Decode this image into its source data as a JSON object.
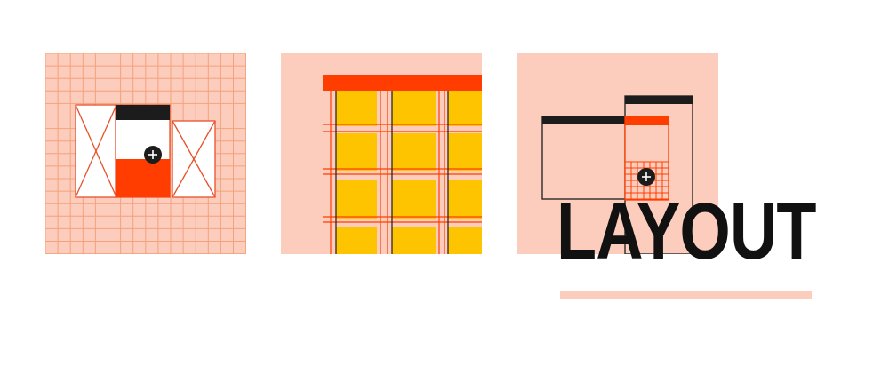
{
  "heading": {
    "title": "LAYOUT"
  },
  "illustrations": [
    {
      "name": "wireframe-grid-illustration",
      "icon": "plus-icon"
    },
    {
      "name": "column-grid-illustration"
    },
    {
      "name": "responsive-screens-illustration",
      "icon": "plus-icon"
    }
  ],
  "colors": {
    "peach": "#FCCDBD",
    "orange_red": "#FF3D00",
    "yellow": "#FFC400",
    "grid_line": "#F4A27C",
    "dark": "#1C1C1C",
    "title": "#111111"
  }
}
